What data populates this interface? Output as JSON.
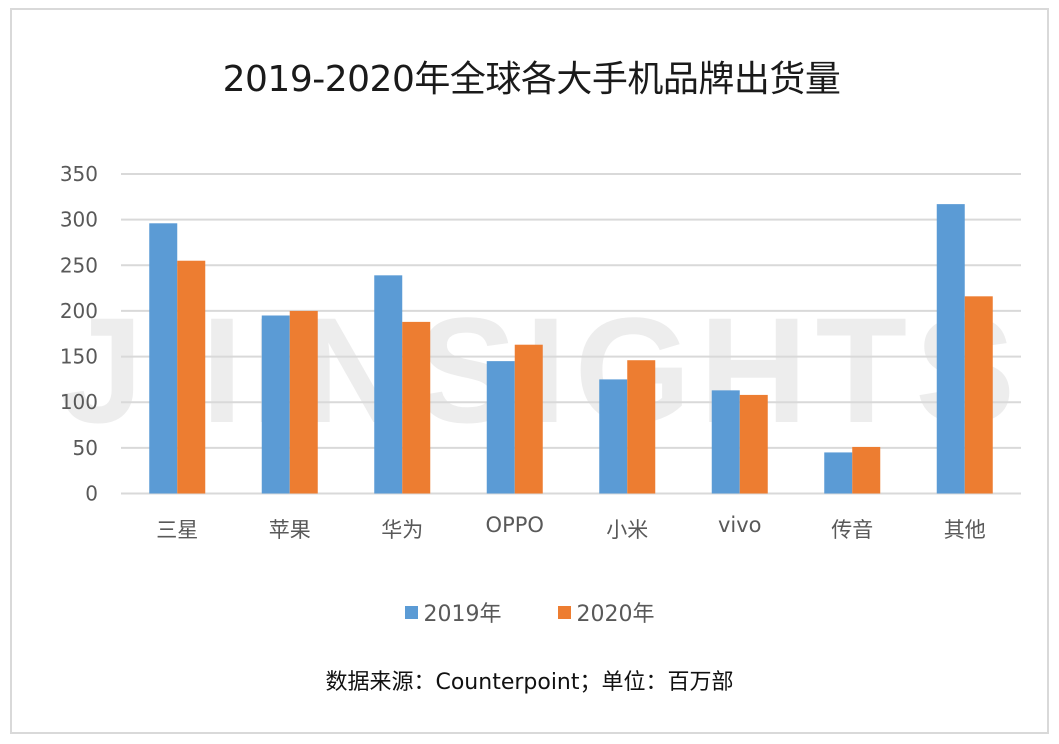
{
  "title": "2019-2020年全球各大手机品牌出货量",
  "watermark": "JIIINSIGHTS",
  "legend": [
    {
      "label": "2019年",
      "color": "#5b9bd5"
    },
    {
      "label": "2020年",
      "color": "#ed7d31"
    }
  ],
  "source": "数据来源：Counterpoint；单位：百万部",
  "chart_data": {
    "type": "bar",
    "title": "2019-2020年全球各大手机品牌出货量",
    "xlabel": "",
    "ylabel": "",
    "categories": [
      "三星",
      "苹果",
      "华为",
      "OPPO",
      "小米",
      "vivo",
      "传音",
      "其他"
    ],
    "series": [
      {
        "name": "2019年",
        "color": "#5b9bd5",
        "values": [
          296,
          195,
          239,
          145,
          125,
          113,
          45,
          317
        ]
      },
      {
        "name": "2020年",
        "color": "#ed7d31",
        "values": [
          255,
          200,
          188,
          163,
          146,
          108,
          51,
          216
        ]
      }
    ],
    "ylim": [
      0,
      350
    ],
    "yticks": [
      0,
      50,
      100,
      150,
      200,
      250,
      300,
      350
    ],
    "grid": true,
    "legend_position": "bottom",
    "annotation": "数据来源：Counterpoint；单位：百万部"
  }
}
